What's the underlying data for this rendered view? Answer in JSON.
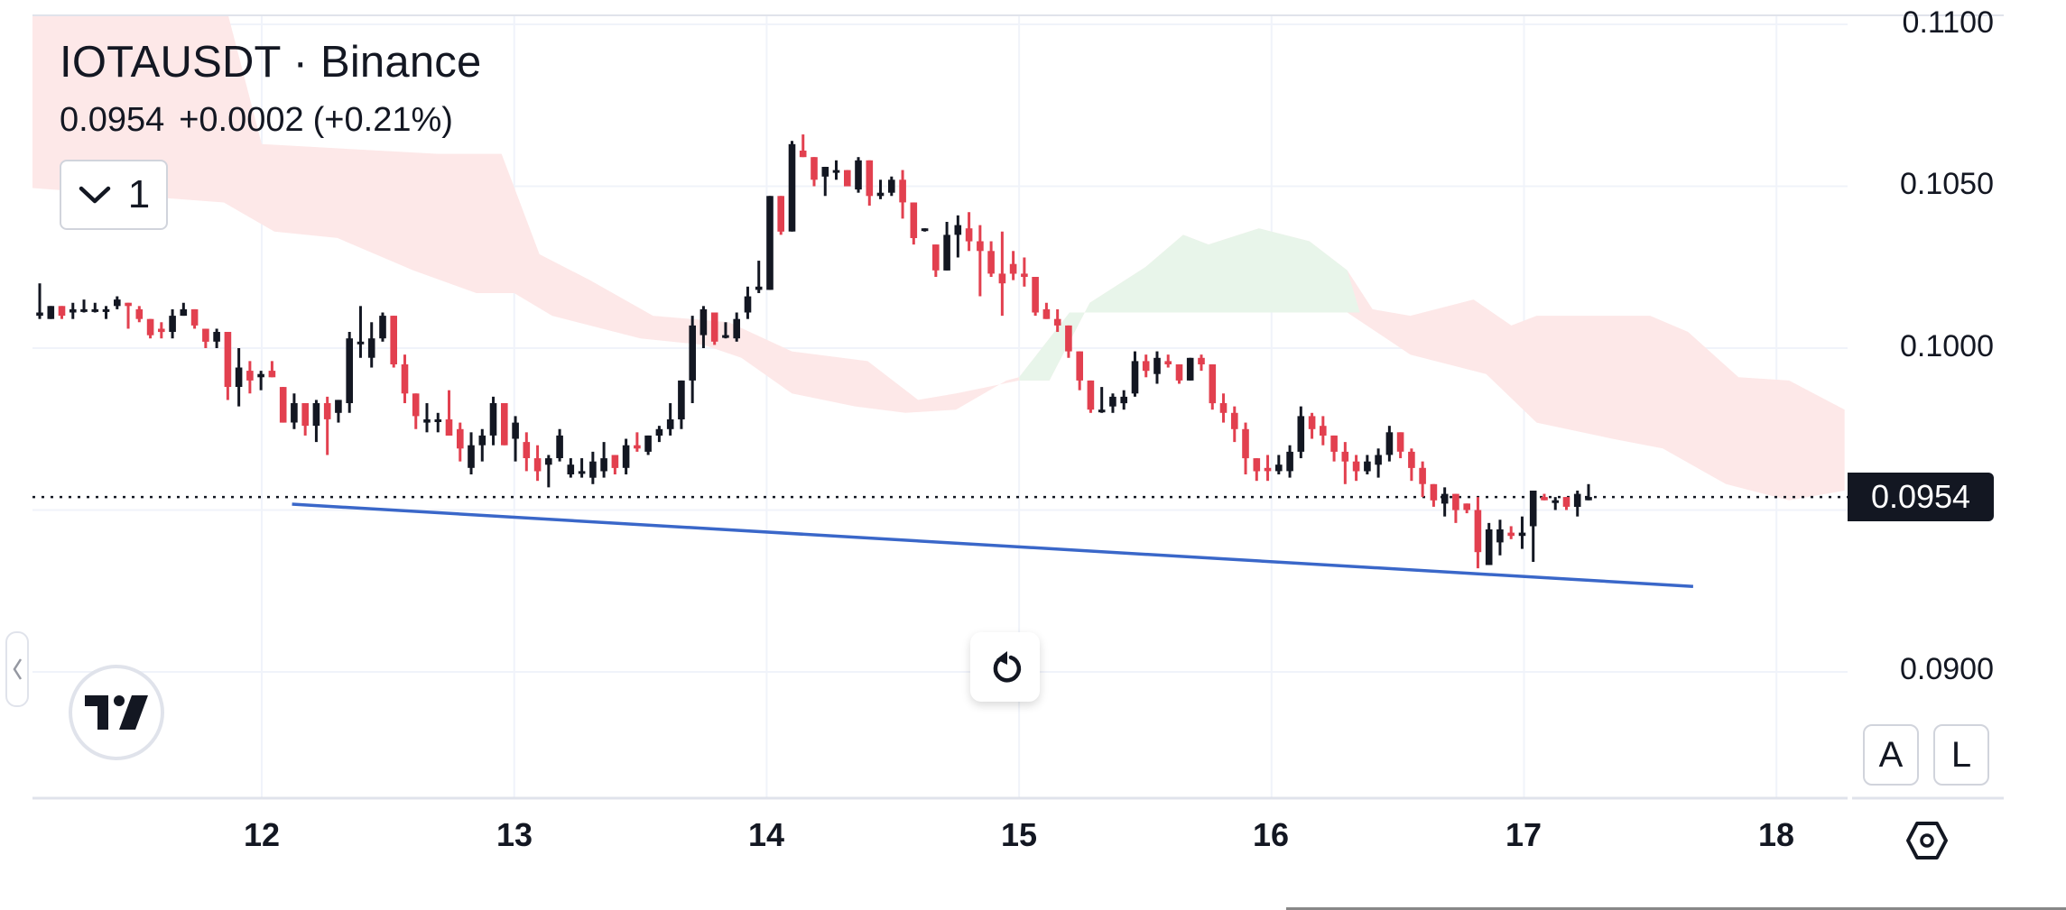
{
  "header": {
    "symbol": "IOTAUSDT",
    "separator": "·",
    "exchange": "Binance",
    "symbol_full": "IOTAUSDT · Binance",
    "last_price": "0.0954",
    "change": "+0.0002",
    "change_pct": "(+0.21%)",
    "indicators_toggle_count": "1"
  },
  "price_axis": {
    "labels": [
      "0.1100",
      "0.1050",
      "0.1000",
      "0.0900"
    ],
    "last_price_tag": "0.0954",
    "auto_button": "A",
    "log_button": "L"
  },
  "time_axis": {
    "labels": [
      "12",
      "13",
      "14",
      "15",
      "16",
      "17",
      "18"
    ]
  },
  "icons": {
    "chevron": "chevron-down-icon",
    "reset": "reset-icon",
    "settings": "settings-hexagon-icon",
    "logo": "tradingview-logo",
    "collapse": "chevron-left-icon"
  },
  "colors": {
    "up_candle": "#131722",
    "down_candle": "#e2404f",
    "trendline": "#3a67c9",
    "cloud_bearish": "#fde8e8",
    "cloud_bullish": "#e8f5ea",
    "grid": "#f0f3fa",
    "last_price_line": "#131722"
  },
  "chart_data": {
    "type": "candlestick",
    "title": "IOTAUSDT · Binance",
    "xlabel": "",
    "ylabel": "",
    "ylim": [
      0.088,
      0.1105
    ],
    "x_ticks": [
      "12",
      "13",
      "14",
      "15",
      "16",
      "17",
      "18"
    ],
    "y_ticks": [
      0.09,
      0.1,
      0.105,
      0.11
    ],
    "grid": true,
    "last_price": 0.0954,
    "candles": [
      {
        "o": 0.101,
        "h": 0.102,
        "l": 0.1009,
        "c": 0.1011
      },
      {
        "o": 0.1009,
        "h": 0.1013,
        "l": 0.1009,
        "c": 0.1013
      },
      {
        "o": 0.1013,
        "h": 0.1013,
        "l": 0.1009,
        "c": 0.101
      },
      {
        "o": 0.1011,
        "h": 0.1014,
        "l": 0.1009,
        "c": 0.1012
      },
      {
        "o": 0.1012,
        "h": 0.1015,
        "l": 0.1011,
        "c": 0.1012
      },
      {
        "o": 0.1012,
        "h": 0.1014,
        "l": 0.1011,
        "c": 0.1012
      },
      {
        "o": 0.1012,
        "h": 0.1013,
        "l": 0.1009,
        "c": 0.1012
      },
      {
        "o": 0.1013,
        "h": 0.1016,
        "l": 0.1012,
        "c": 0.1015
      },
      {
        "o": 0.1014,
        "h": 0.1014,
        "l": 0.1006,
        "c": 0.1013
      },
      {
        "o": 0.1012,
        "h": 0.1013,
        "l": 0.1008,
        "c": 0.1009
      },
      {
        "o": 0.1009,
        "h": 0.1009,
        "l": 0.1003,
        "c": 0.1004
      },
      {
        "o": 0.1006,
        "h": 0.1008,
        "l": 0.1003,
        "c": 0.1005
      },
      {
        "o": 0.1005,
        "h": 0.1012,
        "l": 0.1003,
        "c": 0.101
      },
      {
        "o": 0.101,
        "h": 0.1014,
        "l": 0.101,
        "c": 0.1012
      },
      {
        "o": 0.1012,
        "h": 0.1012,
        "l": 0.1006,
        "c": 0.1007
      },
      {
        "o": 0.1006,
        "h": 0.1006,
        "l": 0.1,
        "c": 0.1002
      },
      {
        "o": 0.1002,
        "h": 0.1006,
        "l": 0.1,
        "c": 0.1005
      },
      {
        "o": 0.1005,
        "h": 0.1005,
        "l": 0.0984,
        "c": 0.0988
      },
      {
        "o": 0.0988,
        "h": 0.1,
        "l": 0.0982,
        "c": 0.0994
      },
      {
        "o": 0.0993,
        "h": 0.0996,
        "l": 0.0986,
        "c": 0.099
      },
      {
        "o": 0.0991,
        "h": 0.0993,
        "l": 0.0987,
        "c": 0.0992
      },
      {
        "o": 0.0993,
        "h": 0.0996,
        "l": 0.0991,
        "c": 0.0991
      },
      {
        "o": 0.0988,
        "h": 0.0988,
        "l": 0.0977,
        "c": 0.0977
      },
      {
        "o": 0.0977,
        "h": 0.0986,
        "l": 0.0975,
        "c": 0.0983
      },
      {
        "o": 0.0983,
        "h": 0.0983,
        "l": 0.0973,
        "c": 0.0976
      },
      {
        "o": 0.0976,
        "h": 0.0984,
        "l": 0.0971,
        "c": 0.0983
      },
      {
        "o": 0.0983,
        "h": 0.0985,
        "l": 0.0967,
        "c": 0.0978
      },
      {
        "o": 0.098,
        "h": 0.0984,
        "l": 0.0977,
        "c": 0.0984
      },
      {
        "o": 0.0983,
        "h": 0.1005,
        "l": 0.098,
        "c": 0.1003
      },
      {
        "o": 0.1002,
        "h": 0.1013,
        "l": 0.0997,
        "c": 0.1002
      },
      {
        "o": 0.0997,
        "h": 0.1008,
        "l": 0.0994,
        "c": 0.1003
      },
      {
        "o": 0.1003,
        "h": 0.1011,
        "l": 0.1002,
        "c": 0.101
      },
      {
        "o": 0.101,
        "h": 0.101,
        "l": 0.0994,
        "c": 0.0995
      },
      {
        "o": 0.0995,
        "h": 0.0998,
        "l": 0.0983,
        "c": 0.0986
      },
      {
        "o": 0.0986,
        "h": 0.0986,
        "l": 0.0975,
        "c": 0.0979
      },
      {
        "o": 0.0977,
        "h": 0.0983,
        "l": 0.0974,
        "c": 0.0978
      },
      {
        "o": 0.0978,
        "h": 0.098,
        "l": 0.0974,
        "c": 0.0978
      },
      {
        "o": 0.0978,
        "h": 0.0987,
        "l": 0.0975,
        "c": 0.0973
      },
      {
        "o": 0.0975,
        "h": 0.0977,
        "l": 0.0965,
        "c": 0.0969
      },
      {
        "o": 0.0963,
        "h": 0.0974,
        "l": 0.0961,
        "c": 0.097
      },
      {
        "o": 0.097,
        "h": 0.0975,
        "l": 0.0965,
        "c": 0.0973
      },
      {
        "o": 0.0973,
        "h": 0.0985,
        "l": 0.097,
        "c": 0.0983
      },
      {
        "o": 0.0983,
        "h": 0.0983,
        "l": 0.097,
        "c": 0.097
      },
      {
        "o": 0.0972,
        "h": 0.0979,
        "l": 0.0965,
        "c": 0.0977
      },
      {
        "o": 0.0971,
        "h": 0.0974,
        "l": 0.0962,
        "c": 0.0966
      },
      {
        "o": 0.0966,
        "h": 0.097,
        "l": 0.0959,
        "c": 0.0962
      },
      {
        "o": 0.0964,
        "h": 0.0967,
        "l": 0.0957,
        "c": 0.0966
      },
      {
        "o": 0.0966,
        "h": 0.0975,
        "l": 0.0965,
        "c": 0.0973
      },
      {
        "o": 0.0961,
        "h": 0.0966,
        "l": 0.096,
        "c": 0.0964
      },
      {
        "o": 0.0962,
        "h": 0.0966,
        "l": 0.096,
        "c": 0.0962
      },
      {
        "o": 0.096,
        "h": 0.0968,
        "l": 0.0958,
        "c": 0.0965
      },
      {
        "o": 0.0962,
        "h": 0.0971,
        "l": 0.096,
        "c": 0.0966
      },
      {
        "o": 0.0967,
        "h": 0.0967,
        "l": 0.0961,
        "c": 0.0963
      },
      {
        "o": 0.0963,
        "h": 0.0972,
        "l": 0.0961,
        "c": 0.097
      },
      {
        "o": 0.097,
        "h": 0.0974,
        "l": 0.0968,
        "c": 0.0969
      },
      {
        "o": 0.0968,
        "h": 0.0973,
        "l": 0.0967,
        "c": 0.0973
      },
      {
        "o": 0.0973,
        "h": 0.0976,
        "l": 0.0971,
        "c": 0.0975
      },
      {
        "o": 0.0975,
        "h": 0.0983,
        "l": 0.0973,
        "c": 0.0978
      },
      {
        "o": 0.0978,
        "h": 0.099,
        "l": 0.0975,
        "c": 0.099
      },
      {
        "o": 0.099,
        "h": 0.101,
        "l": 0.0983,
        "c": 0.1007
      },
      {
        "o": 0.1004,
        "h": 0.1013,
        "l": 0.1,
        "c": 0.1012
      },
      {
        "o": 0.1011,
        "h": 0.1011,
        "l": 0.1001,
        "c": 0.1002
      },
      {
        "o": 0.1004,
        "h": 0.1008,
        "l": 0.1003,
        "c": 0.1004
      },
      {
        "o": 0.1003,
        "h": 0.1011,
        "l": 0.1002,
        "c": 0.1009
      },
      {
        "o": 0.1011,
        "h": 0.1019,
        "l": 0.1009,
        "c": 0.1016
      },
      {
        "o": 0.1018,
        "h": 0.1027,
        "l": 0.1017,
        "c": 0.1019
      },
      {
        "o": 0.1018,
        "h": 0.1043,
        "l": 0.1018,
        "c": 0.1047
      },
      {
        "o": 0.1047,
        "h": 0.1047,
        "l": 0.1035,
        "c": 0.1036
      },
      {
        "o": 0.1036,
        "h": 0.1064,
        "l": 0.1036,
        "c": 0.1063
      },
      {
        "o": 0.1061,
        "h": 0.1066,
        "l": 0.1059,
        "c": 0.1059
      },
      {
        "o": 0.1059,
        "h": 0.1059,
        "l": 0.105,
        "c": 0.1052
      },
      {
        "o": 0.1053,
        "h": 0.1056,
        "l": 0.1047,
        "c": 0.1056
      },
      {
        "o": 0.1055,
        "h": 0.1058,
        "l": 0.1052,
        "c": 0.1055
      },
      {
        "o": 0.1055,
        "h": 0.1055,
        "l": 0.105,
        "c": 0.105
      },
      {
        "o": 0.1049,
        "h": 0.1059,
        "l": 0.1048,
        "c": 0.1058
      },
      {
        "o": 0.1058,
        "h": 0.1058,
        "l": 0.1044,
        "c": 0.1047
      },
      {
        "o": 0.1047,
        "h": 0.1052,
        "l": 0.1046,
        "c": 0.1048
      },
      {
        "o": 0.1048,
        "h": 0.1053,
        "l": 0.1047,
        "c": 0.1052
      },
      {
        "o": 0.1052,
        "h": 0.1055,
        "l": 0.104,
        "c": 0.1045
      },
      {
        "o": 0.1045,
        "h": 0.1045,
        "l": 0.1032,
        "c": 0.1034
      },
      {
        "o": 0.1037,
        "h": 0.1037,
        "l": 0.1036,
        "c": 0.1037
      },
      {
        "o": 0.1032,
        "h": 0.1032,
        "l": 0.1022,
        "c": 0.1024
      },
      {
        "o": 0.1024,
        "h": 0.1039,
        "l": 0.1024,
        "c": 0.1035
      },
      {
        "o": 0.1035,
        "h": 0.1041,
        "l": 0.1028,
        "c": 0.1038
      },
      {
        "o": 0.1037,
        "h": 0.1042,
        "l": 0.103,
        "c": 0.1033
      },
      {
        "o": 0.1033,
        "h": 0.1038,
        "l": 0.1016,
        "c": 0.103
      },
      {
        "o": 0.103,
        "h": 0.1033,
        "l": 0.1022,
        "c": 0.1023
      },
      {
        "o": 0.1023,
        "h": 0.1036,
        "l": 0.101,
        "c": 0.102
      },
      {
        "o": 0.1026,
        "h": 0.103,
        "l": 0.1021,
        "c": 0.1023
      },
      {
        "o": 0.1023,
        "h": 0.1028,
        "l": 0.1019,
        "c": 0.1022
      },
      {
        "o": 0.1022,
        "h": 0.1022,
        "l": 0.101,
        "c": 0.1011
      },
      {
        "o": 0.1012,
        "h": 0.1014,
        "l": 0.1009,
        "c": 0.1009
      },
      {
        "o": 0.1009,
        "h": 0.1012,
        "l": 0.1005,
        "c": 0.1007
      },
      {
        "o": 0.1007,
        "h": 0.1007,
        "l": 0.0997,
        "c": 0.0999
      },
      {
        "o": 0.0999,
        "h": 0.0999,
        "l": 0.0987,
        "c": 0.099
      },
      {
        "o": 0.099,
        "h": 0.099,
        "l": 0.098,
        "c": 0.0981
      },
      {
        "o": 0.0981,
        "h": 0.0988,
        "l": 0.098,
        "c": 0.0981
      },
      {
        "o": 0.0982,
        "h": 0.0986,
        "l": 0.098,
        "c": 0.0985
      },
      {
        "o": 0.0983,
        "h": 0.0987,
        "l": 0.0981,
        "c": 0.0985
      },
      {
        "o": 0.0986,
        "h": 0.0999,
        "l": 0.0985,
        "c": 0.0996
      },
      {
        "o": 0.0996,
        "h": 0.0998,
        "l": 0.0991,
        "c": 0.0993
      },
      {
        "o": 0.0992,
        "h": 0.0999,
        "l": 0.0989,
        "c": 0.0997
      },
      {
        "o": 0.0996,
        "h": 0.0998,
        "l": 0.0994,
        "c": 0.0995
      },
      {
        "o": 0.0995,
        "h": 0.0995,
        "l": 0.0989,
        "c": 0.099
      },
      {
        "o": 0.099,
        "h": 0.0997,
        "l": 0.099,
        "c": 0.0997
      },
      {
        "o": 0.0997,
        "h": 0.0998,
        "l": 0.0993,
        "c": 0.0995
      },
      {
        "o": 0.0995,
        "h": 0.0995,
        "l": 0.0981,
        "c": 0.0983
      },
      {
        "o": 0.0983,
        "h": 0.0986,
        "l": 0.0977,
        "c": 0.098
      },
      {
        "o": 0.098,
        "h": 0.0982,
        "l": 0.0971,
        "c": 0.0975
      },
      {
        "o": 0.0975,
        "h": 0.0977,
        "l": 0.0961,
        "c": 0.0966
      },
      {
        "o": 0.0966,
        "h": 0.0966,
        "l": 0.0959,
        "c": 0.0962
      },
      {
        "o": 0.0963,
        "h": 0.0967,
        "l": 0.0959,
        "c": 0.0962
      },
      {
        "o": 0.0962,
        "h": 0.0967,
        "l": 0.0961,
        "c": 0.0964
      },
      {
        "o": 0.0962,
        "h": 0.097,
        "l": 0.096,
        "c": 0.0968
      },
      {
        "o": 0.0968,
        "h": 0.0982,
        "l": 0.0966,
        "c": 0.0979
      },
      {
        "o": 0.0979,
        "h": 0.098,
        "l": 0.0972,
        "c": 0.0975
      },
      {
        "o": 0.0976,
        "h": 0.0979,
        "l": 0.097,
        "c": 0.0973
      },
      {
        "o": 0.0973,
        "h": 0.0973,
        "l": 0.0965,
        "c": 0.0968
      },
      {
        "o": 0.0968,
        "h": 0.0971,
        "l": 0.0958,
        "c": 0.0965
      },
      {
        "o": 0.0965,
        "h": 0.0967,
        "l": 0.0959,
        "c": 0.0962
      },
      {
        "o": 0.0962,
        "h": 0.0967,
        "l": 0.0961,
        "c": 0.0965
      },
      {
        "o": 0.0964,
        "h": 0.0969,
        "l": 0.096,
        "c": 0.0967
      },
      {
        "o": 0.0967,
        "h": 0.0976,
        "l": 0.0965,
        "c": 0.0974
      },
      {
        "o": 0.0974,
        "h": 0.0974,
        "l": 0.0966,
        "c": 0.0968
      },
      {
        "o": 0.0968,
        "h": 0.0969,
        "l": 0.0959,
        "c": 0.0963
      },
      {
        "o": 0.0963,
        "h": 0.0965,
        "l": 0.0954,
        "c": 0.0958
      },
      {
        "o": 0.0958,
        "h": 0.0958,
        "l": 0.0951,
        "c": 0.0953
      },
      {
        "o": 0.0952,
        "h": 0.0957,
        "l": 0.0948,
        "c": 0.0955
      },
      {
        "o": 0.0955,
        "h": 0.0955,
        "l": 0.0946,
        "c": 0.095
      },
      {
        "o": 0.0952,
        "h": 0.0952,
        "l": 0.0949,
        "c": 0.095
      },
      {
        "o": 0.095,
        "h": 0.0954,
        "l": 0.0932,
        "c": 0.0937
      },
      {
        "o": 0.0933,
        "h": 0.0946,
        "l": 0.0933,
        "c": 0.0944
      },
      {
        "o": 0.094,
        "h": 0.0947,
        "l": 0.0936,
        "c": 0.0944
      },
      {
        "o": 0.0943,
        "h": 0.0945,
        "l": 0.0941,
        "c": 0.0942
      },
      {
        "o": 0.0942,
        "h": 0.0948,
        "l": 0.0938,
        "c": 0.0943
      },
      {
        "o": 0.0945,
        "h": 0.0956,
        "l": 0.0934,
        "c": 0.0956
      },
      {
        "o": 0.0954,
        "h": 0.0955,
        "l": 0.0953,
        "c": 0.0953
      },
      {
        "o": 0.0953,
        "h": 0.0954,
        "l": 0.095,
        "c": 0.0953
      },
      {
        "o": 0.0954,
        "h": 0.0954,
        "l": 0.095,
        "c": 0.0951
      },
      {
        "o": 0.0951,
        "h": 0.0956,
        "l": 0.0948,
        "c": 0.0955
      },
      {
        "o": 0.0953,
        "h": 0.0958,
        "l": 0.0953,
        "c": 0.0954
      }
    ],
    "trendline": {
      "from": {
        "x_day": 12.12,
        "price": 0.09518
      },
      "to": {
        "x_day": 17.67,
        "price": 0.09264
      }
    },
    "ichimoku_cloud": {
      "upper": [
        [
          11.0,
          0.1108
        ],
        [
          11.85,
          0.1108
        ],
        [
          12.0,
          0.1063
        ],
        [
          12.7,
          0.106
        ],
        [
          12.95,
          0.106
        ],
        [
          13.1,
          0.1029
        ],
        [
          13.3,
          0.1021
        ],
        [
          13.55,
          0.101
        ],
        [
          13.85,
          0.1008
        ],
        [
          14.1,
          0.0999
        ],
        [
          14.4,
          0.0996
        ],
        [
          14.6,
          0.0984
        ],
        [
          14.75,
          0.0986
        ],
        [
          15.0,
          0.099
        ],
        [
          15.12,
          0.099
        ],
        [
          15.28,
          0.1014
        ],
        [
          15.5,
          0.1025
        ],
        [
          15.65,
          0.1035
        ],
        [
          15.75,
          0.1032
        ],
        [
          15.95,
          0.1037
        ],
        [
          16.15,
          0.1033
        ],
        [
          16.3,
          0.1024
        ],
        [
          16.4,
          0.1012
        ],
        [
          16.55,
          0.101
        ],
        [
          16.8,
          0.1015
        ],
        [
          16.95,
          0.1007
        ],
        [
          17.05,
          0.101
        ],
        [
          17.5,
          0.101
        ],
        [
          17.65,
          0.1005
        ],
        [
          17.85,
          0.0991
        ],
        [
          18.05,
          0.099
        ],
        [
          18.27,
          0.0981
        ]
      ],
      "lower": [
        [
          18.27,
          0.0956
        ],
        [
          18.05,
          0.0953
        ],
        [
          17.8,
          0.0958
        ],
        [
          17.55,
          0.0969
        ],
        [
          17.35,
          0.0972
        ],
        [
          17.05,
          0.0977
        ],
        [
          16.85,
          0.0992
        ],
        [
          16.55,
          0.0998
        ],
        [
          16.3,
          0.1011
        ],
        [
          16.1,
          0.1011
        ],
        [
          15.95,
          0.1011
        ],
        [
          15.7,
          0.1011
        ],
        [
          15.45,
          0.1011
        ],
        [
          15.2,
          0.1011
        ],
        [
          15.0,
          0.0991
        ],
        [
          14.95,
          0.099
        ],
        [
          14.75,
          0.0981
        ],
        [
          14.55,
          0.098
        ],
        [
          14.35,
          0.0982
        ],
        [
          14.1,
          0.0986
        ],
        [
          13.9,
          0.0997
        ],
        [
          13.75,
          0.1001
        ],
        [
          13.5,
          0.1003
        ],
        [
          13.15,
          0.101
        ],
        [
          13.0,
          0.1017
        ],
        [
          12.85,
          0.1017
        ],
        [
          12.6,
          0.1024
        ],
        [
          12.3,
          0.1034
        ],
        [
          12.05,
          0.1036
        ],
        [
          11.85,
          0.1045
        ],
        [
          11.0,
          0.105
        ]
      ]
    }
  }
}
